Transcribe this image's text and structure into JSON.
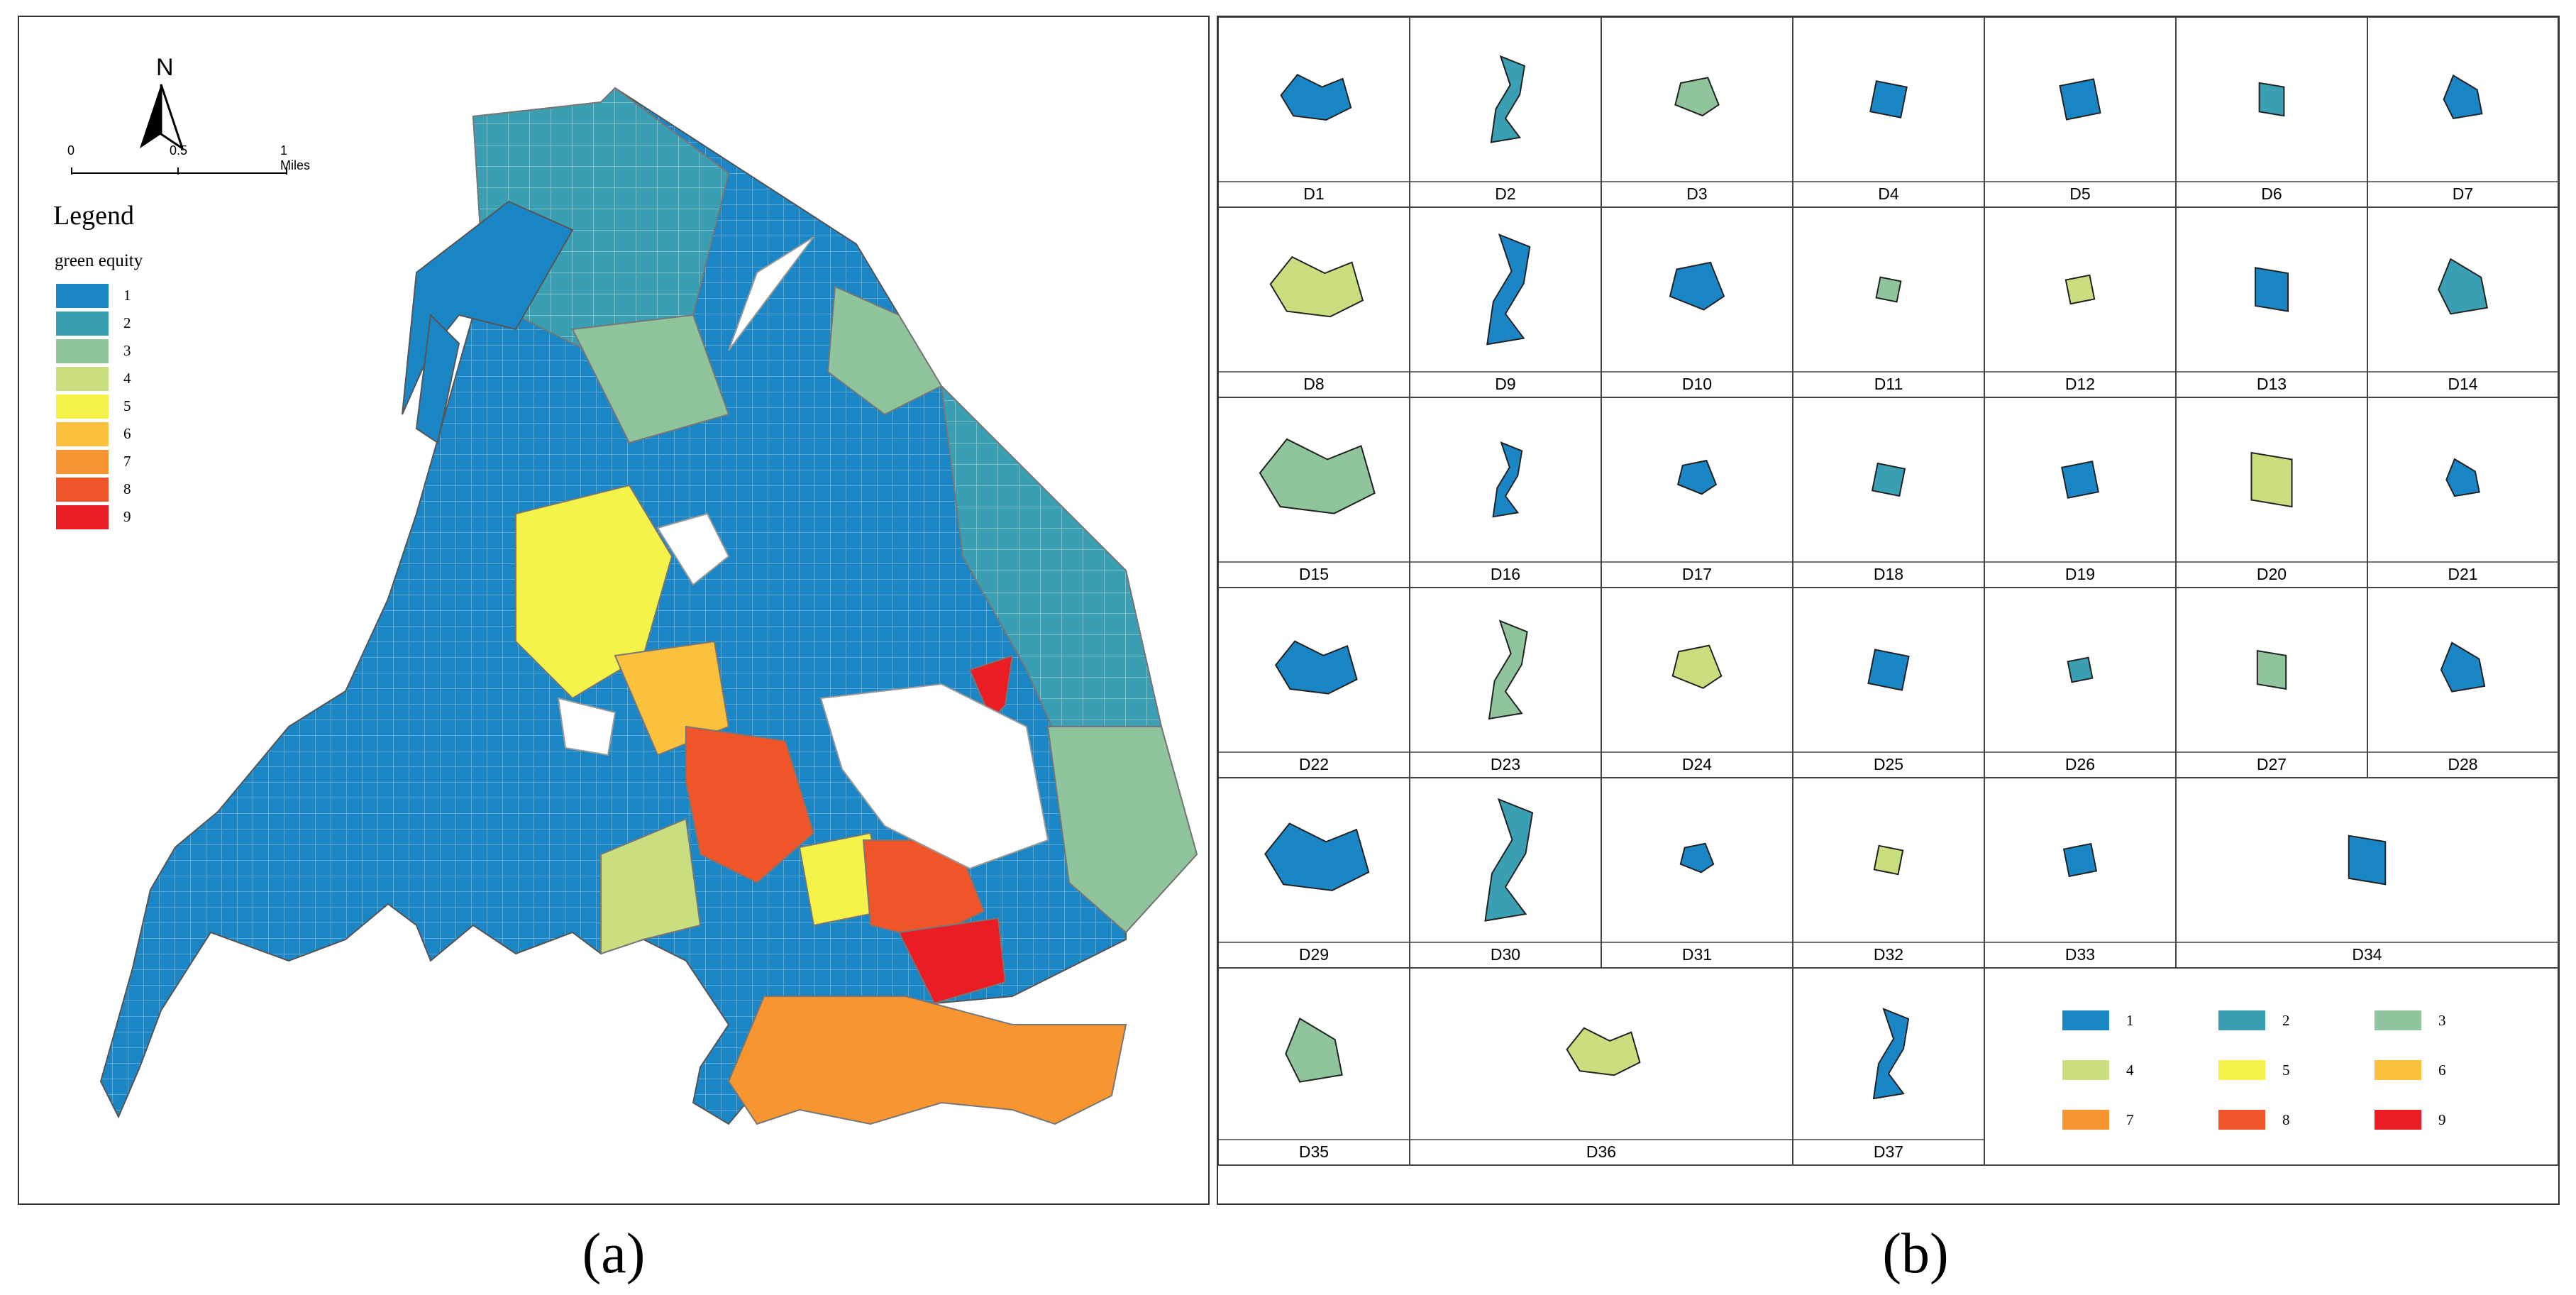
{
  "panel_a": {
    "north_label": "N",
    "scale": {
      "ticks": [
        "0",
        "0.5",
        "1 Miles"
      ]
    },
    "legend_title": "Legend",
    "legend_subtitle": "green equity",
    "classes": [
      {
        "label": "1",
        "color": "#1a86c6"
      },
      {
        "label": "2",
        "color": "#3a9fb2"
      },
      {
        "label": "3",
        "color": "#8fc49c"
      },
      {
        "label": "4",
        "color": "#c9de7f"
      },
      {
        "label": "5",
        "color": "#f5f24a"
      },
      {
        "label": "6",
        "color": "#fbc13c"
      },
      {
        "label": "7",
        "color": "#f79530"
      },
      {
        "label": "8",
        "color": "#f0552a"
      },
      {
        "label": "9",
        "color": "#ec1c24"
      }
    ]
  },
  "panel_b": {
    "districts": [
      "D1",
      "D2",
      "D3",
      "D4",
      "D5",
      "D6",
      "D7",
      "D8",
      "D9",
      "D10",
      "D11",
      "D12",
      "D13",
      "D14",
      "D15",
      "D16",
      "D17",
      "D18",
      "D19",
      "D20",
      "D21",
      "D22",
      "D23",
      "D24",
      "D25",
      "D26",
      "D27",
      "D28",
      "D29",
      "D30",
      "D31",
      "D32",
      "D33",
      "D34",
      "D35",
      "D36",
      "D37"
    ],
    "legend": [
      {
        "label": "1",
        "color": "#1a86c6"
      },
      {
        "label": "2",
        "color": "#3a9fb2"
      },
      {
        "label": "3",
        "color": "#8fc49c"
      },
      {
        "label": "4",
        "color": "#c9de7f"
      },
      {
        "label": "5",
        "color": "#f5f24a"
      },
      {
        "label": "6",
        "color": "#fbc13c"
      },
      {
        "label": "7",
        "color": "#f79530"
      },
      {
        "label": "8",
        "color": "#f0552a"
      },
      {
        "label": "9",
        "color": "#ec1c24"
      }
    ]
  },
  "figure_labels": {
    "a": "(a)",
    "b": "(b)"
  }
}
